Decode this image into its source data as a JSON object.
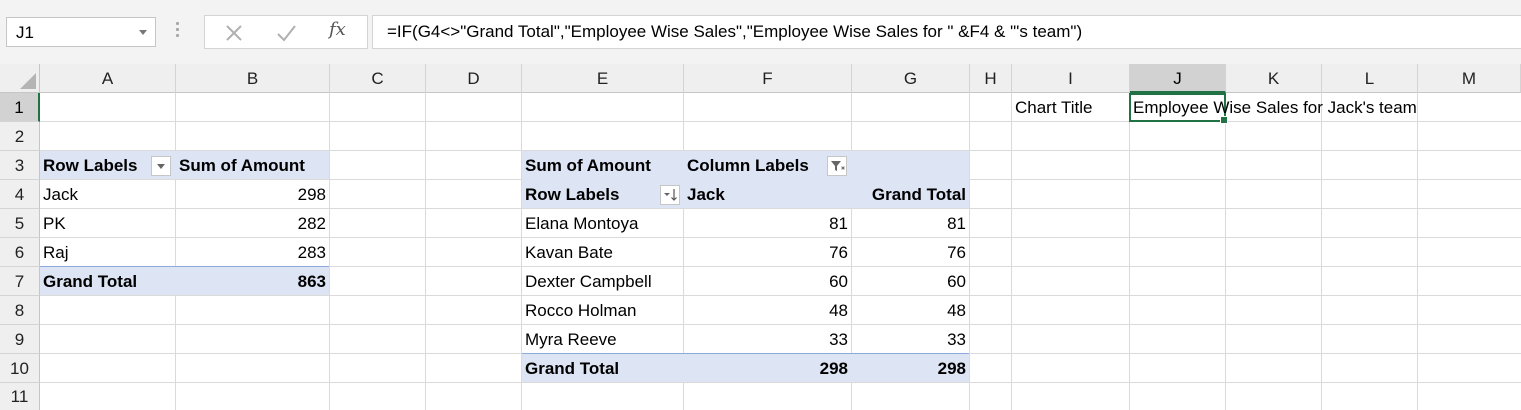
{
  "name_box": {
    "value": "J1"
  },
  "formula_bar": {
    "fx_label": "fx",
    "formula": "=IF(G4<>\"Grand Total\",\"Employee Wise Sales\",\"Employee Wise Sales for \" &F4 & \"'s team\")"
  },
  "columns": [
    "A",
    "B",
    "C",
    "D",
    "E",
    "F",
    "G",
    "H",
    "I",
    "J",
    "K",
    "L",
    "M"
  ],
  "rows": [
    "1",
    "2",
    "3",
    "4",
    "5",
    "6",
    "7",
    "8",
    "9",
    "10",
    "11"
  ],
  "selected_cell": "J1",
  "cells": {
    "I1": "Chart Title",
    "J1": "Employee Wise Sales for Jack's team"
  },
  "pivot1": {
    "header_row_labels": "Row Labels",
    "header_sum": "Sum of Amount",
    "rows": [
      {
        "label": "Jack",
        "value": "298"
      },
      {
        "label": "PK",
        "value": "282"
      },
      {
        "label": "Raj",
        "value": "283"
      }
    ],
    "total_label": "Grand Total",
    "total_value": "863"
  },
  "pivot2": {
    "header_sum": "Sum of Amount",
    "header_col_labels": "Column Labels",
    "header_row_labels": "Row Labels",
    "header_col_jack": "Jack",
    "header_grand_total": "Grand Total",
    "rows": [
      {
        "label": "Elana Montoya",
        "jack": "81",
        "total": "81"
      },
      {
        "label": "Kavan Bate",
        "jack": "76",
        "total": "76"
      },
      {
        "label": "Dexter Campbell",
        "jack": "60",
        "total": "60"
      },
      {
        "label": "Rocco Holman",
        "jack": "48",
        "total": "48"
      },
      {
        "label": "Myra Reeve",
        "jack": "33",
        "total": "33"
      }
    ],
    "total_label": "Grand Total",
    "total_jack": "298",
    "total_total": "298"
  },
  "icons": {
    "cancel": "close-icon",
    "enter": "check-icon",
    "function": "function-icon",
    "filter": "filter-icon",
    "sort": "sort-descending-icon",
    "dropdown": "chevron-down-icon"
  },
  "colors": {
    "accent": "#217346",
    "pivot_band": "#dde5f4",
    "header_bg": "#efefef"
  }
}
